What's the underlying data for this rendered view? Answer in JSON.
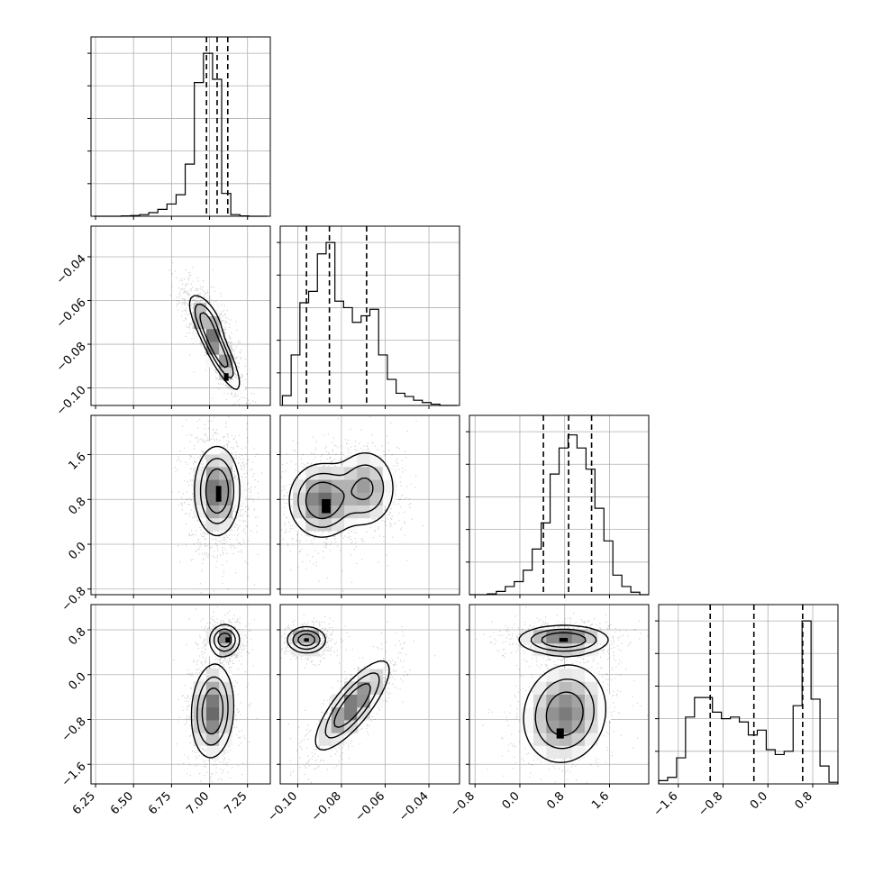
{
  "chart_data": {
    "type": "corner",
    "style": {
      "grid": true,
      "frame_color": "#000000",
      "grid_color": "#b0b0b0",
      "point_color": "#000000",
      "contour_color": "#000000",
      "fill_dark": "#000000",
      "fill_light": "#ffffff"
    },
    "params": [
      {
        "range": [
          6.22,
          7.4
        ],
        "ticks": [
          6.25,
          6.5,
          6.75,
          7.0,
          7.25
        ],
        "tick_labels": [
          "6.25",
          "6.50",
          "6.75",
          "7.00",
          "7.25"
        ]
      },
      {
        "range": [
          -0.108,
          -0.026
        ],
        "ticks": [
          -0.1,
          -0.08,
          -0.06,
          -0.04
        ],
        "tick_labels": [
          "−0.10",
          "−0.08",
          "−0.06",
          "−0.04"
        ]
      },
      {
        "range": [
          -0.9,
          2.3
        ],
        "ticks": [
          -0.8,
          0.0,
          0.8,
          1.6
        ],
        "tick_labels": [
          "−0.8",
          "0.0",
          "0.8",
          "1.6"
        ]
      },
      {
        "range": [
          -1.95,
          1.25
        ],
        "ticks": [
          -1.6,
          -0.8,
          0.0,
          0.8
        ],
        "tick_labels": [
          "−1.6",
          "−0.8",
          "0.0",
          "0.8"
        ]
      }
    ],
    "histograms": [
      {
        "param": 0,
        "bin_edges": [
          6.24,
          6.3,
          6.36,
          6.42,
          6.48,
          6.54,
          6.6,
          6.66,
          6.72,
          6.78,
          6.84,
          6.9,
          6.96,
          7.02,
          7.08,
          7.14,
          7.2,
          7.26,
          7.32,
          7.38
        ],
        "counts": [
          0,
          0,
          0,
          0.002,
          0.004,
          0.01,
          0.022,
          0.042,
          0.075,
          0.132,
          0.32,
          0.82,
          1.0,
          0.84,
          0.14,
          0.01,
          0.002,
          0,
          0
        ],
        "quantiles": [
          6.98,
          7.05,
          7.12
        ],
        "ylim": [
          0,
          1.1
        ]
      },
      {
        "param": 1,
        "bin_edges": [
          -0.107,
          -0.103,
          -0.099,
          -0.095,
          -0.091,
          -0.087,
          -0.083,
          -0.079,
          -0.075,
          -0.071,
          -0.067,
          -0.063,
          -0.059,
          -0.055,
          -0.051,
          -0.047,
          -0.043,
          -0.039,
          -0.035,
          -0.031,
          -0.027
        ],
        "counts": [
          0.06,
          0.31,
          0.63,
          0.7,
          0.93,
          1.0,
          0.64,
          0.6,
          0.51,
          0.55,
          0.59,
          0.31,
          0.16,
          0.075,
          0.055,
          0.032,
          0.018,
          0.008,
          0,
          0
        ],
        "quantiles": [
          -0.096,
          -0.0855,
          -0.0685
        ],
        "ylim": [
          0,
          1.1
        ]
      },
      {
        "param": 2,
        "bin_edges": [
          -0.9,
          -0.74,
          -0.58,
          -0.42,
          -0.26,
          -0.1,
          0.06,
          0.22,
          0.38,
          0.54,
          0.7,
          0.86,
          1.02,
          1.18,
          1.34,
          1.5,
          1.66,
          1.82,
          1.98,
          2.14,
          2.3
        ],
        "counts": [
          0,
          0,
          0.005,
          0.02,
          0.05,
          0.08,
          0.15,
          0.28,
          0.44,
          0.74,
          0.9,
          0.98,
          0.9,
          0.77,
          0.53,
          0.33,
          0.12,
          0.05,
          0.015,
          0
        ],
        "quantiles": [
          0.42,
          0.87,
          1.28
        ],
        "ylim": [
          0,
          1.1
        ]
      },
      {
        "param": 3,
        "bin_edges": [
          -1.95,
          -1.79,
          -1.63,
          -1.47,
          -1.31,
          -1.15,
          -0.99,
          -0.83,
          -0.67,
          -0.51,
          -0.35,
          -0.19,
          -0.03,
          0.13,
          0.29,
          0.45,
          0.61,
          0.77,
          0.93,
          1.09,
          1.25
        ],
        "counts": [
          0.02,
          0.04,
          0.16,
          0.41,
          0.53,
          0.53,
          0.44,
          0.4,
          0.41,
          0.38,
          0.3,
          0.33,
          0.21,
          0.18,
          0.2,
          0.48,
          1.0,
          0.52,
          0.11,
          0.01
        ],
        "quantiles": [
          -1.03,
          -0.25,
          0.62
        ],
        "ylim": [
          0,
          1.1
        ]
      }
    ],
    "pairs": [
      {
        "x": 0,
        "y": 1,
        "components": [
          {
            "w": 1.0,
            "mx": 7.05,
            "my": -0.082,
            "sx": 0.075,
            "sy": 0.0095,
            "rho": -0.86
          },
          {
            "w": 0.5,
            "mx": 6.98,
            "my": -0.068,
            "sx": 0.06,
            "sy": 0.006,
            "rho": -0.6
          }
        ],
        "peaks": [
          {
            "x": 7.11,
            "y": -0.095,
            "w": 0.03,
            "h": 0.0035
          }
        ]
      },
      {
        "x": 0,
        "y": 2,
        "components": [
          {
            "w": 1.0,
            "mx": 7.05,
            "my": 0.95,
            "sx": 0.075,
            "sy": 0.4,
            "rho": 0.0
          }
        ],
        "peaks": [
          {
            "x": 7.06,
            "y": 0.9,
            "w": 0.035,
            "h": 0.28
          }
        ]
      },
      {
        "x": 1,
        "y": 2,
        "components": [
          {
            "w": 1.0,
            "mx": -0.089,
            "my": 0.78,
            "sx": 0.0075,
            "sy": 0.33,
            "rho": 0.0
          },
          {
            "w": 0.7,
            "mx": -0.069,
            "my": 1.0,
            "sx": 0.007,
            "sy": 0.35,
            "rho": 0.0
          }
        ],
        "peaks": [
          {
            "x": -0.087,
            "y": 0.68,
            "w": 0.004,
            "h": 0.25
          }
        ]
      },
      {
        "x": 0,
        "y": 3,
        "components": [
          {
            "w": 0.9,
            "mx": 7.1,
            "my": 0.62,
            "sx": 0.05,
            "sy": 0.14,
            "rho": 0.0
          },
          {
            "w": 1.0,
            "mx": 7.02,
            "my": -0.65,
            "sx": 0.07,
            "sy": 0.42,
            "rho": 0.1
          }
        ],
        "peaks": [
          {
            "x": 7.12,
            "y": 0.62,
            "w": 0.03,
            "h": 0.09
          }
        ]
      },
      {
        "x": 1,
        "y": 3,
        "components": [
          {
            "w": 0.9,
            "mx": -0.096,
            "my": 0.62,
            "sx": 0.0045,
            "sy": 0.12,
            "rho": 0.0
          },
          {
            "w": 1.0,
            "mx": -0.075,
            "my": -0.55,
            "sx": 0.0085,
            "sy": 0.4,
            "rho": 0.8
          }
        ],
        "peaks": [
          {
            "x": -0.096,
            "y": 0.62,
            "w": 0.0022,
            "h": 0.06
          }
        ]
      },
      {
        "x": 2,
        "y": 3,
        "components": [
          {
            "w": 1.0,
            "mx": 0.78,
            "my": 0.62,
            "sx": 0.4,
            "sy": 0.13,
            "rho": 0.0
          },
          {
            "w": 0.9,
            "mx": 0.8,
            "my": -0.7,
            "sx": 0.38,
            "sy": 0.45,
            "rho": 0.1
          }
        ],
        "peaks": [
          {
            "x": 0.78,
            "y": 0.62,
            "w": 0.15,
            "h": 0.07
          },
          {
            "x": 0.72,
            "y": -1.05,
            "w": 0.13,
            "h": 0.18
          }
        ]
      }
    ]
  }
}
